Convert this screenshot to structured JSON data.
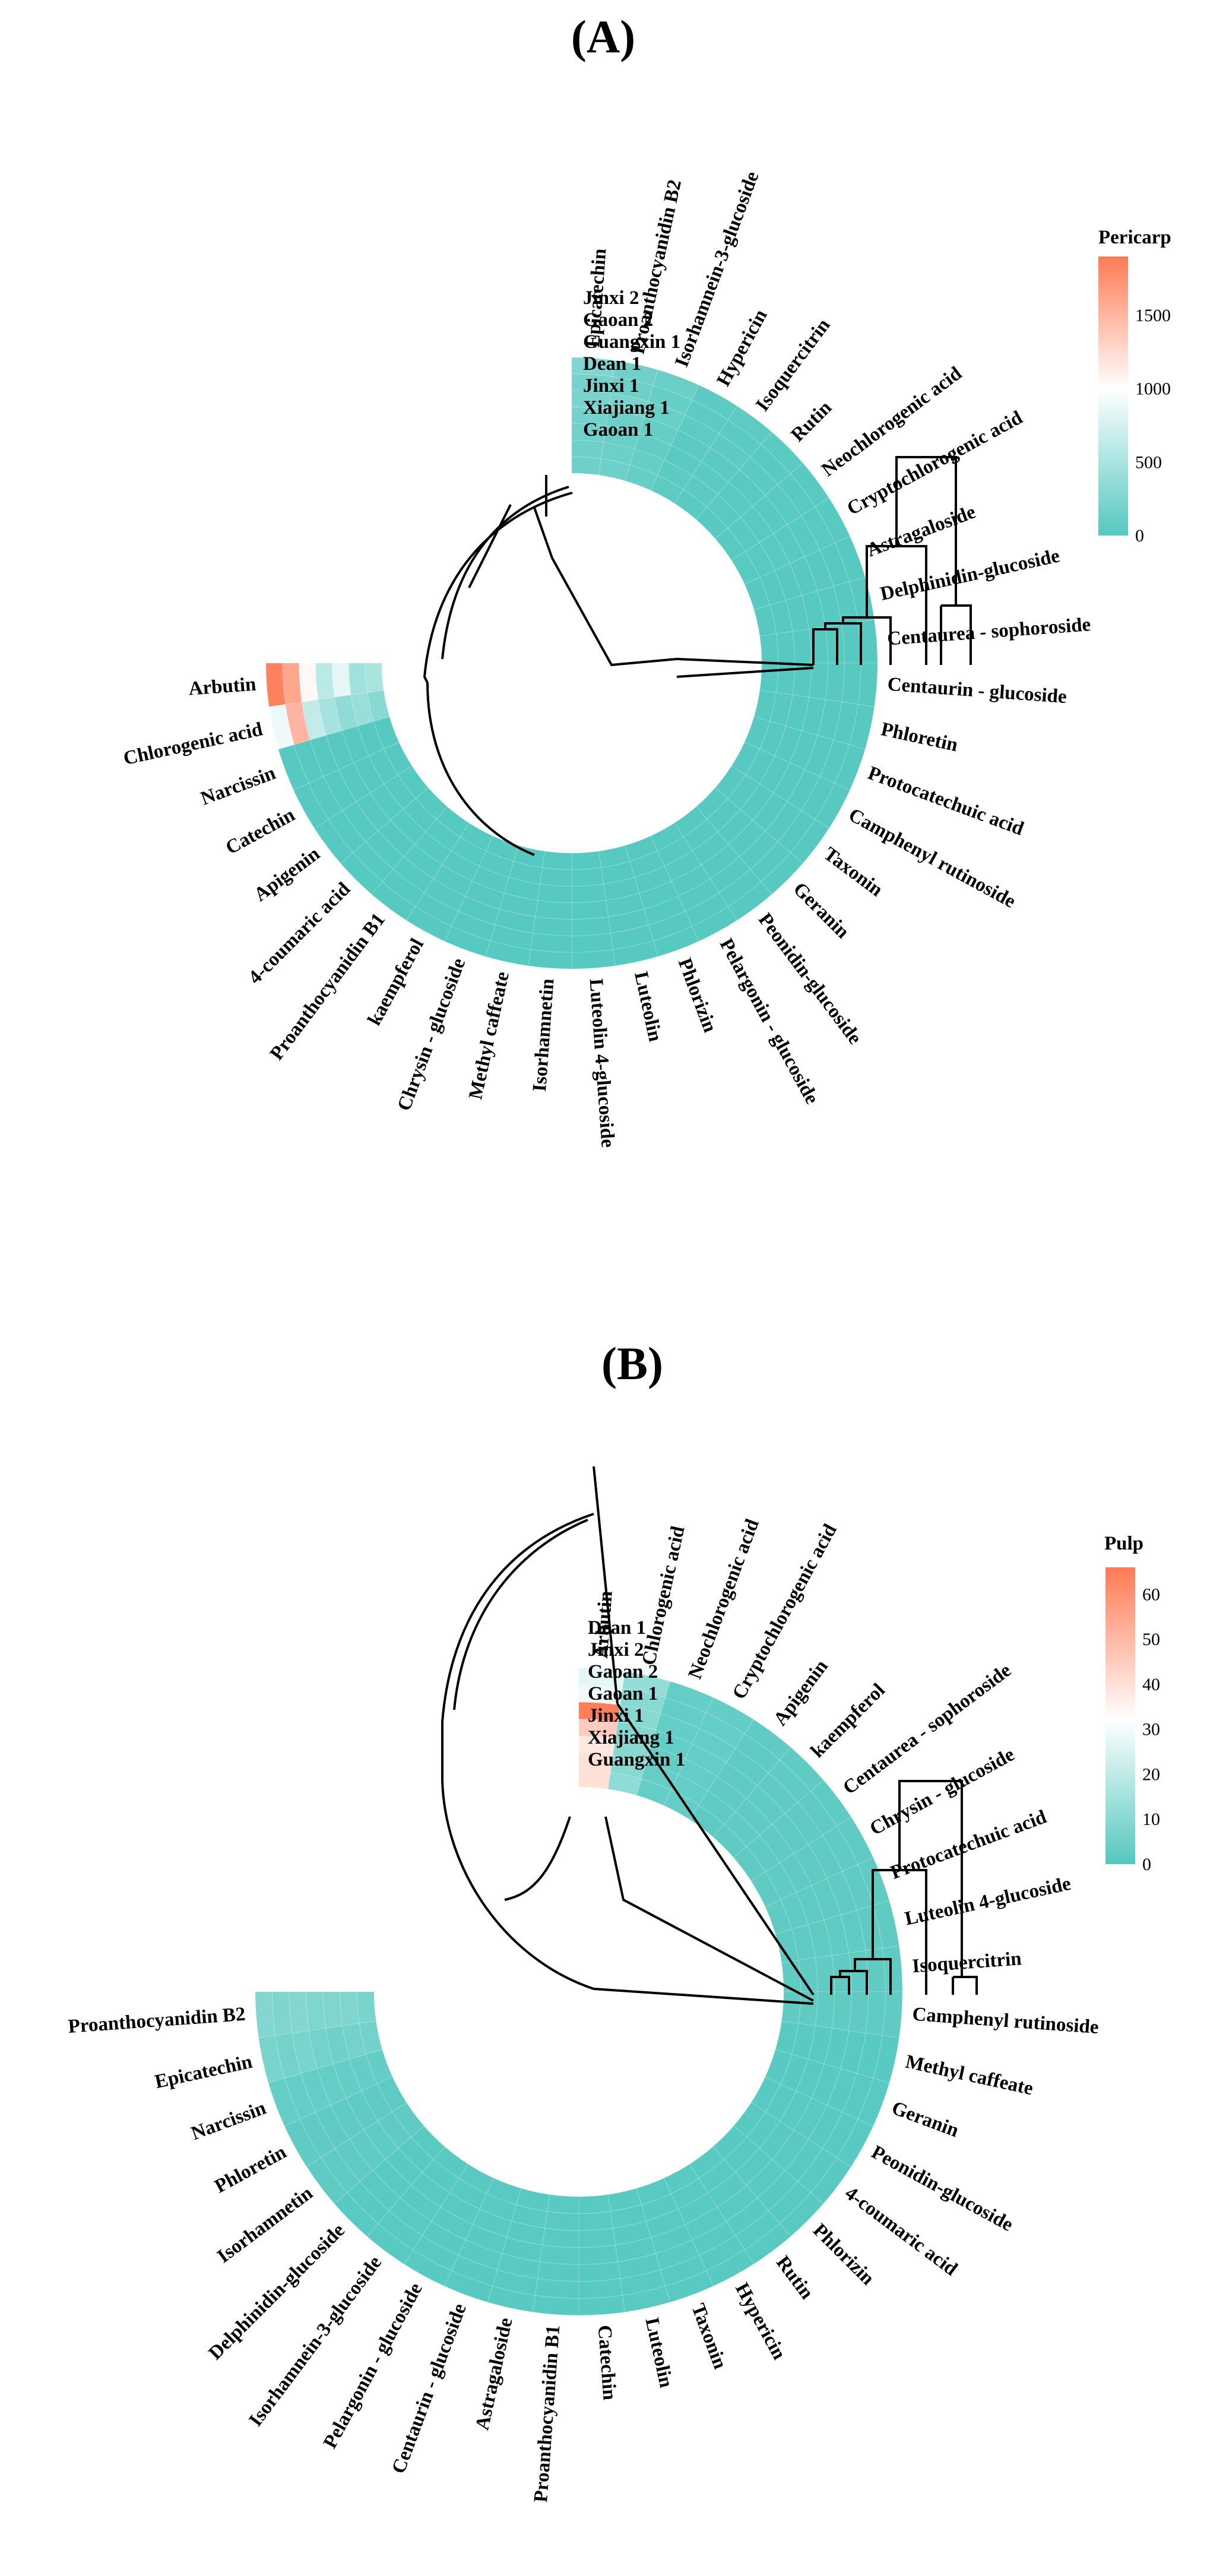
{
  "colors": {
    "low": "#54c8bf",
    "mid": "#ffffff",
    "high": "#ff7a55"
  },
  "chart_data": [
    {
      "type": "heatmap",
      "variant": "circular",
      "panel": "(A)",
      "legend": {
        "title": "Pericarp",
        "ticks": [
          "1500",
          "1000",
          "500",
          "0"
        ],
        "tick_values": [
          1500,
          1000,
          500,
          0
        ],
        "min": 0,
        "mid": 1000,
        "max": 1900
      },
      "samples": [
        "Jinxi 2",
        "Gaoan 2",
        "Guangxin 1",
        "Dean 1",
        "Jinxi 1",
        "Xiajiang 1",
        "Gaoan 1"
      ],
      "compounds": [
        "Epicatechin",
        "Proanthocyanidin B2",
        "Isorhamnein-3-glucoside",
        "Hypericin",
        "Isoquercitrin",
        "Rutin",
        "Neochlorogenic acid",
        "Cryptochlorogenic acid",
        "Astragaloside",
        "Delphinidin-glucoside",
        "Centaurea - sophoroside",
        "Centaurin - glucoside",
        "Phloretin",
        "Protocatechuic acid",
        "Camphenyl rutinoside",
        "Taxonin",
        "Geranin",
        "Peonidin-glucoside",
        "Pelargonin - glucoside",
        "Phlorizin",
        "Luteolin",
        "Luteolin 4-glucoside",
        "Isorhamnetin",
        "Methyl caffeate",
        "Chrysin - glucoside",
        "kaempferol",
        "Proanthocyanidin B1",
        "4-coumaric acid",
        "Apigenin",
        "Catechin",
        "Narcissin",
        "Chlorogenic acid",
        "Arbutin"
      ],
      "values": [
        [
          260,
          200,
          220,
          180,
          160,
          150,
          150
        ],
        [
          170,
          150,
          220,
          140,
          130,
          140,
          150
        ],
        [
          120,
          110,
          130,
          100,
          90,
          100,
          100
        ],
        [
          60,
          50,
          60,
          40,
          40,
          50,
          50
        ],
        [
          50,
          40,
          50,
          40,
          40,
          40,
          40
        ],
        [
          40,
          30,
          40,
          30,
          30,
          30,
          30
        ],
        [
          30,
          30,
          30,
          30,
          30,
          30,
          30
        ],
        [
          30,
          30,
          30,
          30,
          30,
          30,
          30
        ],
        [
          25,
          25,
          25,
          25,
          25,
          25,
          25
        ],
        [
          25,
          25,
          25,
          25,
          25,
          25,
          25
        ],
        [
          20,
          20,
          20,
          20,
          20,
          20,
          20
        ],
        [
          20,
          20,
          20,
          20,
          20,
          20,
          20
        ],
        [
          20,
          20,
          20,
          20,
          20,
          20,
          20
        ],
        [
          20,
          20,
          20,
          20,
          20,
          20,
          20
        ],
        [
          15,
          15,
          15,
          15,
          15,
          15,
          15
        ],
        [
          15,
          15,
          15,
          15,
          15,
          15,
          15
        ],
        [
          15,
          15,
          15,
          15,
          15,
          15,
          15
        ],
        [
          15,
          15,
          15,
          15,
          15,
          15,
          15
        ],
        [
          15,
          15,
          15,
          15,
          15,
          15,
          15
        ],
        [
          10,
          10,
          10,
          10,
          10,
          10,
          10
        ],
        [
          10,
          10,
          10,
          10,
          10,
          10,
          10
        ],
        [
          10,
          10,
          10,
          10,
          10,
          10,
          10
        ],
        [
          10,
          10,
          10,
          10,
          10,
          10,
          10
        ],
        [
          10,
          10,
          10,
          10,
          10,
          10,
          10
        ],
        [
          10,
          10,
          10,
          10,
          10,
          10,
          10
        ],
        [
          10,
          10,
          10,
          10,
          10,
          10,
          10
        ],
        [
          10,
          10,
          10,
          10,
          10,
          10,
          10
        ],
        [
          10,
          10,
          10,
          10,
          10,
          10,
          10
        ],
        [
          10,
          10,
          10,
          10,
          10,
          10,
          10
        ],
        [
          10,
          10,
          10,
          10,
          10,
          10,
          10
        ],
        [
          20,
          20,
          20,
          20,
          20,
          20,
          20
        ],
        [
          900,
          1500,
          650,
          480,
          350,
          400,
          300
        ],
        [
          1850,
          1600,
          1050,
          600,
          850,
          450,
          500
        ]
      ]
    },
    {
      "type": "heatmap",
      "variant": "circular",
      "panel": "(B)",
      "legend": {
        "title": "Pulp",
        "ticks": [
          "60",
          "50",
          "40",
          "30",
          "20",
          "10",
          "0"
        ],
        "tick_values": [
          60,
          50,
          40,
          30,
          20,
          10,
          0
        ],
        "min": 0,
        "mid": 32,
        "max": 66
      },
      "samples": [
        "Dean 1",
        "Jinxi 2",
        "Gaoan 2",
        "Gaoan 1",
        "Jinxi 1",
        "Xiajiang 1",
        "Guangxin 1"
      ],
      "compounds": [
        "Arbutin",
        "Chlorogenic acid",
        "Neochlorogenic acid",
        "Cryptochlorogenic acid",
        "Apigenin",
        "kaempferol",
        "Centaurea - sophoroside",
        "Chrysin - glucoside",
        "Protocatechuic acid",
        "Luteolin 4-glucoside",
        "Isoquercitrin",
        "Camphenyl rutinoside",
        "Methyl caffeate",
        "Geranin",
        "Peonidin-glucoside",
        "4-coumaric acid",
        "Phlorizin",
        "Rutin",
        "Hypericin",
        "Taxonin",
        "Luteolin",
        "Catechin",
        "Proanthocyanidin B1",
        "Astragaloside",
        "Centaurin - glucoside",
        "Pelargonin - glucoside",
        "Isorhamnein-3-glucoside",
        "Delphinidin-glucoside",
        "Isorhamnetin",
        "Phloretin",
        "Narcissin",
        "Epicatechin",
        "Proanthocyanidin B2"
      ],
      "values": [
        [
          27,
          29,
          65,
          45,
          38,
          40,
          40
        ],
        [
          12,
          10,
          10,
          9,
          10,
          10,
          11
        ],
        [
          3,
          3,
          3,
          3,
          3,
          3,
          3
        ],
        [
          3,
          3,
          3,
          3,
          3,
          3,
          3
        ],
        [
          2,
          2,
          2,
          2,
          2,
          2,
          2
        ],
        [
          2,
          2,
          2,
          2,
          2,
          2,
          2
        ],
        [
          2,
          2,
          2,
          2,
          2,
          2,
          2
        ],
        [
          2,
          2,
          2,
          2,
          2,
          2,
          2
        ],
        [
          2,
          2,
          2,
          2,
          2,
          2,
          2
        ],
        [
          2,
          2,
          2,
          2,
          2,
          2,
          2
        ],
        [
          2,
          2,
          2,
          2,
          2,
          2,
          2
        ],
        [
          2,
          2,
          2,
          2,
          2,
          2,
          2
        ],
        [
          1,
          1,
          1,
          1,
          1,
          1,
          1
        ],
        [
          1,
          1,
          1,
          1,
          1,
          1,
          1
        ],
        [
          1,
          1,
          1,
          1,
          1,
          1,
          1
        ],
        [
          1,
          1,
          1,
          1,
          1,
          1,
          1
        ],
        [
          1,
          1,
          1,
          1,
          1,
          1,
          1
        ],
        [
          1,
          1,
          1,
          1,
          1,
          1,
          1
        ],
        [
          1,
          1,
          1,
          1,
          1,
          1,
          1
        ],
        [
          1,
          1,
          1,
          1,
          1,
          1,
          1
        ],
        [
          1,
          1,
          1,
          1,
          1,
          1,
          1
        ],
        [
          1,
          1,
          1,
          1,
          1,
          1,
          1
        ],
        [
          1,
          1,
          1,
          1,
          1,
          1,
          1
        ],
        [
          1,
          1,
          1,
          1,
          1,
          1,
          1
        ],
        [
          1,
          1,
          1,
          1,
          1,
          1,
          1
        ],
        [
          1,
          1,
          1,
          1,
          1,
          1,
          1
        ],
        [
          1,
          1,
          1,
          1,
          1,
          1,
          1
        ],
        [
          1,
          1,
          1,
          1,
          1,
          1,
          1
        ],
        [
          2,
          2,
          2,
          2,
          2,
          2,
          2
        ],
        [
          2,
          2,
          2,
          2,
          2,
          2,
          2
        ],
        [
          3,
          3,
          3,
          3,
          3,
          3,
          3
        ],
        [
          7,
          6,
          7,
          6,
          5,
          6,
          6
        ],
        [
          9,
          8,
          9,
          8,
          8,
          8,
          7
        ]
      ]
    }
  ]
}
